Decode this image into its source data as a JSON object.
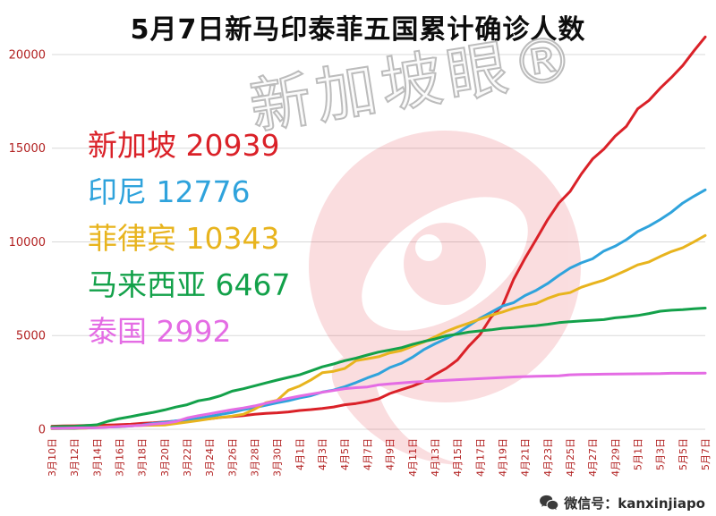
{
  "title": "5月7日新马印泰菲五国累计确诊人数",
  "watermark": {
    "text": "新加坡眼®"
  },
  "footer": {
    "wechat_label": "微信号：kanxinjiapo"
  },
  "colors": {
    "axis_label": "#b22222",
    "gridline": "#d9d9d9",
    "logo_red": "#e02330",
    "singapore": "#da2128",
    "indonesia": "#2fa3dc",
    "philippines": "#e8b41e",
    "malaysia": "#13a14a",
    "thailand": "#e46ce4"
  },
  "chart_data": {
    "type": "line",
    "title": "5月7日新马印泰菲五国累计确诊人数",
    "xlabel": "",
    "ylabel": "",
    "ylim": [
      0,
      21000
    ],
    "yticks": [
      0,
      5000,
      10000,
      15000,
      20000
    ],
    "grid": "horizontal",
    "legend_position": "upper-left-inside",
    "x_tick_step": 2,
    "x_labels_shown": [
      "3月10日",
      "3月12日",
      "3月14日",
      "3月16日",
      "3月18日",
      "3月20日",
      "3月22日",
      "3月24日",
      "3月26日",
      "3月28日",
      "3月30日",
      "4月1日",
      "4月3日",
      "4月5日",
      "4月7日",
      "4月9日",
      "4月11日",
      "4月13日",
      "4月15日",
      "4月17日",
      "4月19日",
      "4月21日",
      "4月23日",
      "4月25日",
      "4月27日",
      "4月29日",
      "5月1日",
      "5月3日",
      "5月5日",
      "5月7日"
    ],
    "legend": [
      {
        "key": "singapore",
        "label": "新加坡",
        "value": 20939,
        "color": "#da2128"
      },
      {
        "key": "indonesia",
        "label": "印尼",
        "value": 12776,
        "color": "#2fa3dc"
      },
      {
        "key": "philippines",
        "label": "菲律宾",
        "value": 10343,
        "color": "#e8b41e"
      },
      {
        "key": "malaysia",
        "label": "马来西亚",
        "value": 6467,
        "color": "#13a14a"
      },
      {
        "key": "thailand",
        "label": "泰国",
        "value": 2992,
        "color": "#e46ce4"
      }
    ],
    "series": [
      {
        "key": "singapore",
        "name": "新加坡",
        "color": "#da2128",
        "values": [
          160,
          178,
          187,
          200,
          212,
          226,
          243,
          266,
          313,
          345,
          385,
          432,
          455,
          509,
          558,
          631,
          683,
          732,
          802,
          844,
          879,
          926,
          1000,
          1049,
          1114,
          1189,
          1309,
          1375,
          1481,
          1623,
          1910,
          2108,
          2299,
          2532,
          2918,
          3252,
          3699,
          4427,
          5050,
          5992,
          6588,
          8014,
          9125,
          10141,
          11178,
          12075,
          12693,
          13624,
          14423,
          14951,
          15641,
          16169,
          17101,
          17548,
          18205,
          18778,
          19410,
          20198,
          20939
        ]
      },
      {
        "key": "indonesia",
        "name": "印尼",
        "color": "#2fa3dc",
        "values": [
          27,
          34,
          34,
          69,
          96,
          117,
          134,
          172,
          227,
          309,
          369,
          450,
          514,
          579,
          686,
          790,
          893,
          1046,
          1155,
          1285,
          1414,
          1528,
          1677,
          1790,
          1986,
          2092,
          2273,
          2491,
          2738,
          2956,
          3293,
          3512,
          3842,
          4241,
          4557,
          4839,
          5136,
          5516,
          5923,
          6248,
          6575,
          6760,
          7135,
          7418,
          7775,
          8211,
          8607,
          8882,
          9096,
          9511,
          9771,
          10118,
          10551,
          10843,
          11192,
          11587,
          12071,
          12438,
          12776
        ]
      },
      {
        "key": "philippines",
        "name": "菲律宾",
        "color": "#e8b41e",
        "values": [
          33,
          49,
          52,
          64,
          111,
          140,
          142,
          187,
          202,
          217,
          230,
          307,
          380,
          462,
          552,
          636,
          707,
          803,
          1075,
          1418,
          1546,
          2084,
          2311,
          2633,
          3018,
          3094,
          3246,
          3660,
          3764,
          3870,
          4076,
          4195,
          4428,
          4648,
          4932,
          5223,
          5453,
          5660,
          5878,
          6087,
          6259,
          6459,
          6599,
          6710,
          6981,
          7192,
          7294,
          7579,
          7777,
          7958,
          8212,
          8488,
          8772,
          8928,
          9223,
          9485,
          9684,
          10004,
          10343
        ]
      },
      {
        "key": "malaysia",
        "name": "马来西亚",
        "color": "#13a14a",
        "values": [
          129,
          149,
          158,
          197,
          238,
          428,
          566,
          673,
          790,
          900,
          1030,
          1183,
          1306,
          1518,
          1624,
          1796,
          2031,
          2161,
          2320,
          2470,
          2626,
          2766,
          2908,
          3116,
          3333,
          3483,
          3662,
          3793,
          3963,
          4119,
          4228,
          4346,
          4530,
          4683,
          4817,
          4987,
          5072,
          5182,
          5251,
          5305,
          5389,
          5425,
          5482,
          5532,
          5603,
          5691,
          5742,
          5780,
          5820,
          5851,
          5945,
          6002,
          6071,
          6176,
          6298,
          6353,
          6383,
          6428,
          6467
        ]
      },
      {
        "key": "thailand",
        "name": "泰国",
        "color": "#e46ce4",
        "values": [
          53,
          59,
          70,
          75,
          82,
          114,
          147,
          177,
          212,
          272,
          322,
          411,
          599,
          721,
          827,
          934,
          1045,
          1136,
          1245,
          1388,
          1524,
          1651,
          1771,
          1875,
          1978,
          2067,
          2169,
          2220,
          2258,
          2369,
          2423,
          2473,
          2518,
          2551,
          2579,
          2613,
          2643,
          2672,
          2700,
          2733,
          2765,
          2792,
          2811,
          2826,
          2839,
          2854,
          2907,
          2922,
          2931,
          2938,
          2947,
          2954,
          2960,
          2966,
          2969,
          2987,
          2988,
          2989,
          2992
        ]
      }
    ]
  }
}
